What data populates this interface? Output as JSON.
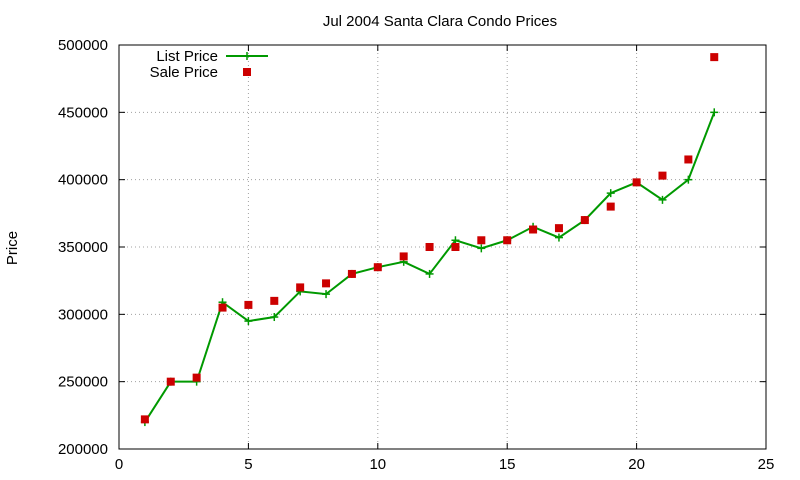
{
  "chart_data": {
    "type": "line",
    "title": "Jul 2004 Santa Clara Condo Prices",
    "xlabel": "",
    "ylabel": "Price",
    "xlim": [
      0,
      25
    ],
    "ylim": [
      200000,
      500000
    ],
    "xticks": [
      0,
      5,
      10,
      15,
      20,
      25
    ],
    "yticks": [
      200000,
      250000,
      300000,
      350000,
      400000,
      450000,
      500000
    ],
    "grid": true,
    "legend_position": "top-left",
    "series": [
      {
        "name": "List Price",
        "style": "line+cross",
        "color": "#009900",
        "x": [
          1,
          2,
          3,
          4,
          5,
          6,
          7,
          8,
          9,
          10,
          11,
          12,
          13,
          14,
          15,
          16,
          17,
          18,
          19,
          20,
          21,
          22,
          23
        ],
        "y": [
          220000,
          250000,
          250000,
          309000,
          295000,
          298000,
          317000,
          315000,
          330000,
          335000,
          339000,
          330000,
          355000,
          349000,
          355000,
          365000,
          357000,
          370000,
          390000,
          398000,
          385000,
          400000,
          450000
        ]
      },
      {
        "name": "Sale Price",
        "style": "square",
        "color": "#cc0000",
        "x": [
          1,
          2,
          3,
          4,
          5,
          6,
          7,
          8,
          9,
          10,
          11,
          12,
          13,
          14,
          15,
          16,
          17,
          18,
          19,
          20,
          21,
          22,
          23
        ],
        "y": [
          222000,
          250000,
          253000,
          305000,
          307000,
          310000,
          320000,
          323000,
          330000,
          335000,
          343000,
          350000,
          350000,
          355000,
          355000,
          363000,
          364000,
          370000,
          380000,
          398000,
          403000,
          415000,
          491000
        ]
      }
    ]
  }
}
